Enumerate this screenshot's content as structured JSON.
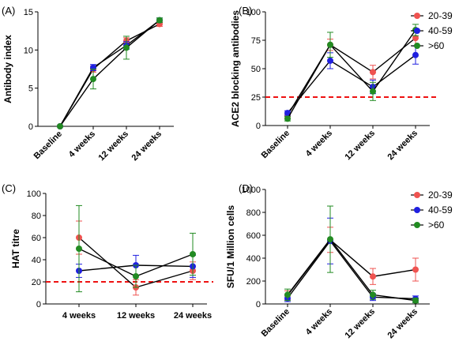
{
  "colors": {
    "20-39": "#ef5350",
    "40-59": "#2020e0",
    ">60": "#228b22",
    "threshold": "#ee1111",
    "line": "#000000"
  },
  "chart_data": [
    {
      "panel_label": "(A)",
      "type": "line",
      "categories": [
        "Baseline",
        "4 weeks",
        "12 weeks",
        "24 weeks"
      ],
      "ylabel": "Antibody index",
      "ylim": [
        0,
        15
      ],
      "yticks": [
        0,
        5,
        10,
        15
      ],
      "legend": false,
      "series": [
        {
          "name": "20-39",
          "values": [
            0,
            7.5,
            11.2,
            13.4
          ],
          "err": [
            0,
            0.4,
            0.4,
            0.3
          ]
        },
        {
          "name": "40-59",
          "values": [
            0,
            7.7,
            10.6,
            13.9
          ],
          "err": [
            0,
            0.4,
            0.5,
            0.3
          ]
        },
        {
          "name": ">60",
          "values": [
            0,
            6.2,
            10.3,
            13.9
          ],
          "err": [
            0,
            1.3,
            1.5,
            0.3
          ]
        }
      ]
    },
    {
      "panel_label": "(B)",
      "type": "line",
      "categories": [
        "Baseline",
        "4 weeks",
        "12 weeks",
        "24 weeks"
      ],
      "ylabel": "ACE2 blocking antibodies",
      "ylim": [
        0,
        100
      ],
      "yticks": [
        0,
        25,
        50,
        75,
        100
      ],
      "threshold": 25,
      "legend": true,
      "legend_labels": [
        "20-39",
        "40-59",
        ">60"
      ],
      "series": [
        {
          "name": "20-39",
          "values": [
            9,
            71,
            47,
            77
          ],
          "err": [
            2,
            5,
            6,
            7
          ]
        },
        {
          "name": "40-59",
          "values": [
            11,
            57,
            34,
            62
          ],
          "err": [
            2,
            7,
            6,
            8
          ]
        },
        {
          "name": ">60",
          "values": [
            6,
            71,
            30,
            84
          ],
          "err": [
            2,
            11,
            8,
            5
          ]
        }
      ]
    },
    {
      "panel_label": "(C)",
      "type": "line",
      "categories": [
        "4 weeks",
        "12 weeks",
        "24 weeks"
      ],
      "ylabel": "HAT titre",
      "ylim": [
        0,
        100
      ],
      "yticks": [
        0,
        20,
        40,
        60,
        80,
        100
      ],
      "threshold": 20,
      "legend": false,
      "series": [
        {
          "name": "20-39",
          "values": [
            60,
            15,
            30
          ],
          "err": [
            15,
            7,
            8
          ]
        },
        {
          "name": "40-59",
          "values": [
            30,
            35,
            34
          ],
          "err": [
            6,
            9,
            10
          ]
        },
        {
          "name": ">60",
          "values": [
            50,
            25,
            45
          ],
          "err": [
            39,
            10,
            19
          ]
        }
      ]
    },
    {
      "panel_label": "(D)",
      "type": "line",
      "categories": [
        "Baseline",
        "4 weeks",
        "12 weeks",
        "24 weeks"
      ],
      "ylabel": "SFU/1 Million cells",
      "ylim": [
        0,
        1000
      ],
      "yticks": [
        0,
        200,
        400,
        600,
        800,
        1000
      ],
      "legend": true,
      "legend_labels": [
        "20-39",
        "40-59",
        ">60"
      ],
      "series": [
        {
          "name": "20-39",
          "values": [
            75,
            560,
            240,
            300
          ],
          "err": [
            40,
            110,
            70,
            100
          ]
        },
        {
          "name": "40-59",
          "values": [
            50,
            550,
            60,
            45
          ],
          "err": [
            30,
            200,
            30,
            25
          ]
        },
        {
          "name": ">60",
          "values": [
            80,
            565,
            80,
            30
          ],
          "err": [
            50,
            290,
            40,
            20
          ]
        }
      ]
    }
  ]
}
